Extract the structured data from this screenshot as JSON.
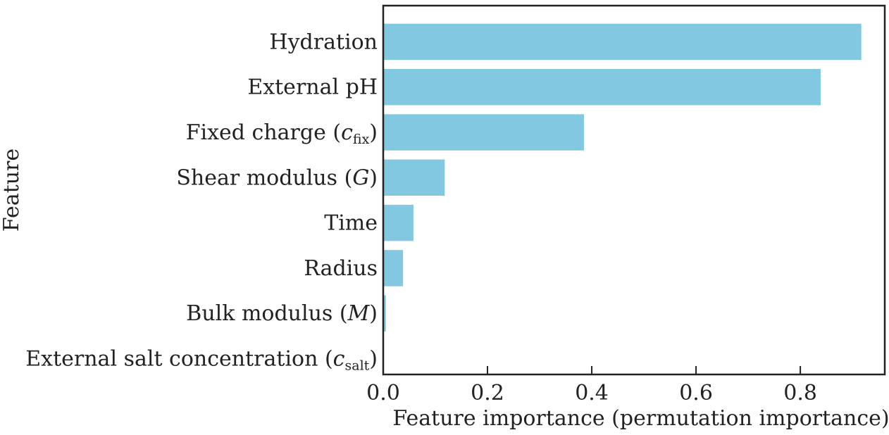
{
  "chart_data": {
    "type": "bar",
    "orientation": "horizontal",
    "categories": [
      "Hydration",
      "External pH",
      "Fixed charge (c_fix)",
      "Shear modulus (G)",
      "Time",
      "Radius",
      "Bulk modulus (M)",
      "External salt concentration (c_salt)"
    ],
    "labels": [
      {
        "main": "Hydration",
        "italic": "",
        "sub": "",
        "close": ""
      },
      {
        "main": "External pH",
        "italic": "",
        "sub": "",
        "close": ""
      },
      {
        "main": "Fixed charge (",
        "italic": "c",
        "sub": "fix",
        "close": ")"
      },
      {
        "main": "Shear modulus (",
        "italic": "G",
        "sub": "",
        "close": ")"
      },
      {
        "main": "Time",
        "italic": "",
        "sub": "",
        "close": ""
      },
      {
        "main": "Radius",
        "italic": "",
        "sub": "",
        "close": ""
      },
      {
        "main": "Bulk modulus (",
        "italic": "M",
        "sub": "",
        "close": ")"
      },
      {
        "main": "External salt concentration (",
        "italic": "c",
        "sub": "salt",
        "close": ")"
      }
    ],
    "values": [
      0.917,
      0.839,
      0.385,
      0.118,
      0.058,
      0.038,
      0.005,
      0.0
    ],
    "title": "",
    "xlabel": "Feature importance (permutation importance)",
    "ylabel": "Feature",
    "xlim": [
      0.0,
      0.962
    ],
    "xticks": [
      0.0,
      0.2,
      0.4,
      0.6,
      0.8
    ],
    "xtick_labels": [
      "0.0",
      "0.2",
      "0.4",
      "0.6",
      "0.8"
    ],
    "grid": false,
    "bar_color": "#82c8e0"
  }
}
